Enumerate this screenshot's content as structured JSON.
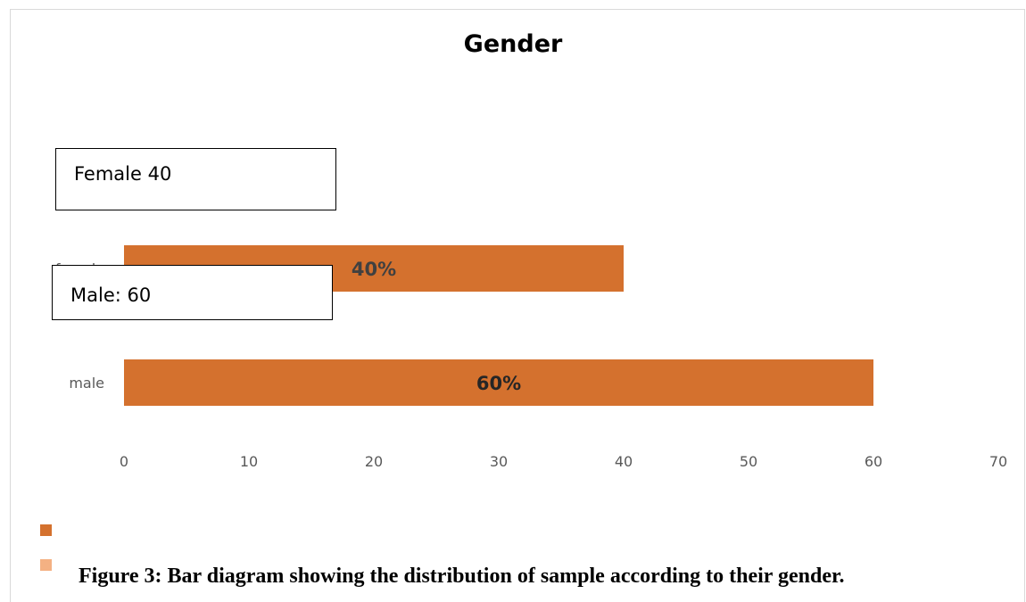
{
  "chart_data": {
    "type": "bar",
    "orientation": "horizontal",
    "title": "Gender",
    "categories": [
      "female",
      "male"
    ],
    "values": [
      40,
      60
    ],
    "data_labels": [
      "40%",
      "60%"
    ],
    "xlim": [
      0,
      70
    ],
    "x_ticks": [
      "0",
      "10",
      "20",
      "30",
      "40",
      "50",
      "60",
      "70"
    ],
    "bar_color": "#D4712E",
    "grid": false,
    "legend_colors": [
      "#D4712E",
      "#F4B183"
    ]
  },
  "annotations": {
    "female_box": "Female 40",
    "male_box": "Male: 60"
  },
  "caption": "Figure 3: Bar diagram showing the distribution of sample according to their gender."
}
